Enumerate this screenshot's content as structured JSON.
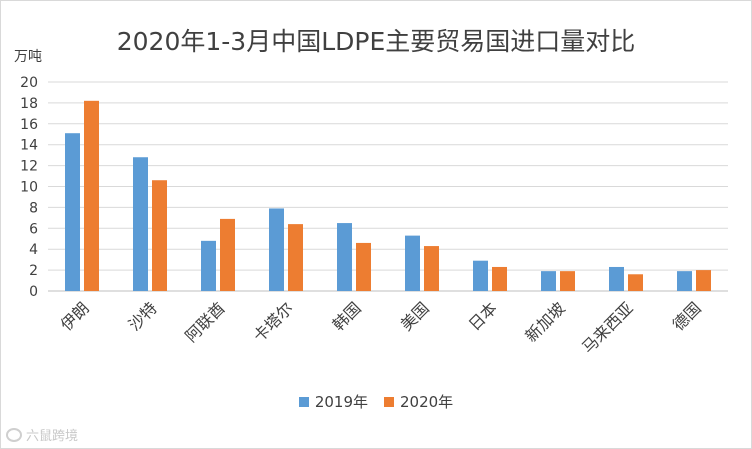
{
  "chart_data": {
    "type": "bar",
    "title": "2020年1-3月中国LDPE主要贸易国进口量对比",
    "ylabel": "万吨",
    "xlabel": "",
    "ylim": [
      0,
      20
    ],
    "yticks": [
      0,
      2,
      4,
      6,
      8,
      10,
      12,
      14,
      16,
      18,
      20
    ],
    "grid": true,
    "legend_position": "bottom",
    "categories": [
      "伊朗",
      "沙特",
      "阿联酋",
      "卡塔尔",
      "韩国",
      "美国",
      "日本",
      "新加坡",
      "马来西亚",
      "德国"
    ],
    "series": [
      {
        "name": "2019年",
        "color": "#5b9bd5",
        "values": [
          15.1,
          12.8,
          4.8,
          7.9,
          6.5,
          5.3,
          2.9,
          1.9,
          2.3,
          1.9
        ]
      },
      {
        "name": "2020年",
        "color": "#ed7d31",
        "values": [
          18.2,
          10.6,
          6.9,
          6.4,
          4.6,
          4.3,
          2.3,
          1.9,
          1.6,
          2.0
        ]
      }
    ]
  },
  "watermark": {
    "text": "六鼠跨境",
    "icon": "logo-icon"
  }
}
